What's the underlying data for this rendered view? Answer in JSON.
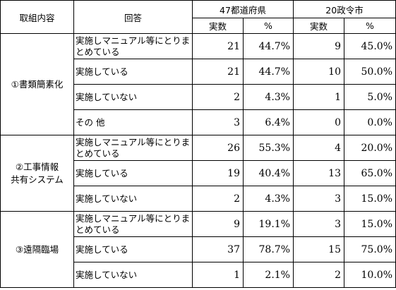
{
  "headers": {
    "category": "取組内容",
    "answer": "回答",
    "prefectures": "47都道府県",
    "cities": "20政令市",
    "count": "実数",
    "percent": "%"
  },
  "groups": [
    {
      "category": [
        "①書類簡素化"
      ],
      "rows": [
        {
          "answer": "実施しマニュアル等にとりまとめている",
          "pref_count": "21",
          "pref_pct": "44.7%",
          "city_count": "9",
          "city_pct": "45.0%"
        },
        {
          "answer": "実施している",
          "pref_count": "21",
          "pref_pct": "44.7%",
          "city_count": "10",
          "city_pct": "50.0%"
        },
        {
          "answer": "実施していない",
          "pref_count": "2",
          "pref_pct": "4.3%",
          "city_count": "1",
          "city_pct": "5.0%"
        },
        {
          "answer": "その 他",
          "pref_count": "3",
          "pref_pct": "6.4%",
          "city_count": "0",
          "city_pct": "0.0%"
        }
      ]
    },
    {
      "category": [
        "②工事情報",
        "共有システム"
      ],
      "rows": [
        {
          "answer": "実施しマニュアル等にとりまとめている",
          "pref_count": "26",
          "pref_pct": "55.3%",
          "city_count": "4",
          "city_pct": "20.0%"
        },
        {
          "answer": "実施している",
          "pref_count": "19",
          "pref_pct": "40.4%",
          "city_count": "13",
          "city_pct": "65.0%"
        },
        {
          "answer": "実施していない",
          "pref_count": "2",
          "pref_pct": "4.3%",
          "city_count": "3",
          "city_pct": "15.0%"
        }
      ]
    },
    {
      "category": [
        "③遠隔臨場"
      ],
      "rows": [
        {
          "answer": "実施しマニュアル等にとりまとめている",
          "pref_count": "9",
          "pref_pct": "19.1%",
          "city_count": "3",
          "city_pct": "15.0%"
        },
        {
          "answer": "実施している",
          "pref_count": "37",
          "pref_pct": "78.7%",
          "city_count": "15",
          "city_pct": "75.0%"
        },
        {
          "answer": "実施していない",
          "pref_count": "1",
          "pref_pct": "2.1%",
          "city_count": "2",
          "city_pct": "10.0%"
        }
      ]
    }
  ]
}
